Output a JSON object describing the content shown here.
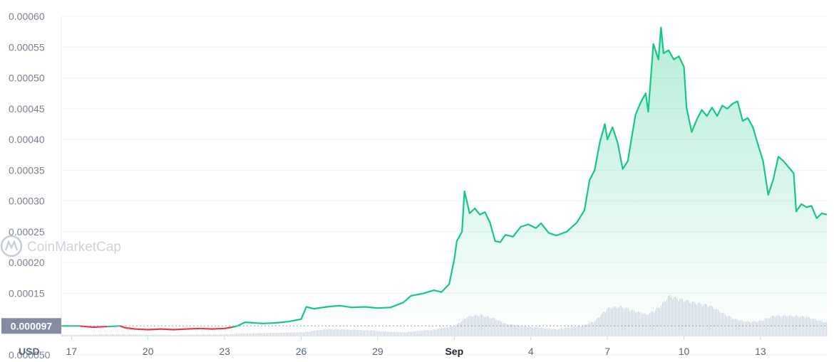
{
  "chart_data": {
    "type": "line",
    "currency_label": "USD",
    "watermark": "CoinMarketCap",
    "start_price_label": "0.000097",
    "start_price": 9.7e-05,
    "y_ticks": [
      "0.00060",
      "0.00055",
      "0.00050",
      "0.00045",
      "0.00040",
      "0.00035",
      "0.00030",
      "0.00025",
      "0.00020",
      "0.00015",
      "0.000050"
    ],
    "y_tick_values": [
      0.0006,
      0.00055,
      0.0005,
      0.00045,
      0.0004,
      0.00035,
      0.0003,
      0.00025,
      0.0002,
      0.00015,
      5e-05
    ],
    "ylim": [
      8e-05,
      0.0006
    ],
    "x_ticks": [
      {
        "label": "17",
        "day": 0
      },
      {
        "label": "20",
        "day": 3
      },
      {
        "label": "23",
        "day": 6
      },
      {
        "label": "26",
        "day": 9
      },
      {
        "label": "29",
        "day": 12
      },
      {
        "label": "Sep",
        "day": 15,
        "bold": true
      },
      {
        "label": "4",
        "day": 18
      },
      {
        "label": "7",
        "day": 21
      },
      {
        "label": "10",
        "day": 24
      },
      {
        "label": "13",
        "day": 27
      }
    ],
    "xlim": [
      -0.4,
      29.6
    ],
    "grid": true,
    "series": [
      {
        "values": [
          [
            -0.4,
            9.7e-05
          ],
          [
            0.3,
            9.7e-05
          ],
          [
            0.8,
            9.5e-05
          ],
          [
            1.4,
            9.6e-05
          ],
          [
            1.9,
            9.7e-05
          ],
          [
            2.1,
            9.4e-05
          ],
          [
            2.5,
            9.2e-05
          ],
          [
            3.0,
            9.1e-05
          ],
          [
            3.5,
            9.2e-05
          ],
          [
            4.0,
            9.1e-05
          ],
          [
            4.5,
            9.2e-05
          ],
          [
            5.0,
            9.3e-05
          ],
          [
            5.5,
            9.2e-05
          ],
          [
            6.0,
            9.3e-05
          ],
          [
            6.3,
            9.5e-05
          ],
          [
            6.5,
            9.7e-05
          ],
          [
            6.8,
            0.000103
          ],
          [
            7.5,
            0.000101
          ],
          [
            8.0,
            0.000102
          ],
          [
            8.5,
            0.000104
          ],
          [
            9.0,
            0.000108
          ],
          [
            9.2,
            0.000128
          ],
          [
            9.5,
            0.000125
          ],
          [
            10.0,
            0.000128
          ],
          [
            10.5,
            0.00013
          ],
          [
            11.0,
            0.000127
          ],
          [
            11.5,
            0.000128
          ],
          [
            12.0,
            0.000126
          ],
          [
            12.5,
            0.000127
          ],
          [
            13.0,
            0.000135
          ],
          [
            13.3,
            0.000146
          ],
          [
            13.8,
            0.00015
          ],
          [
            14.2,
            0.000155
          ],
          [
            14.5,
            0.000152
          ],
          [
            14.8,
            0.000165
          ],
          [
            14.9,
            0.000185
          ],
          [
            15.0,
            0.000205
          ],
          [
            15.1,
            0.000235
          ],
          [
            15.3,
            0.00025
          ],
          [
            15.4,
            0.000316
          ],
          [
            15.6,
            0.00028
          ],
          [
            15.8,
            0.000288
          ],
          [
            16.0,
            0.000278
          ],
          [
            16.2,
            0.000282
          ],
          [
            16.4,
            0.000265
          ],
          [
            16.6,
            0.000235
          ],
          [
            16.8,
            0.000233
          ],
          [
            17.0,
            0.000245
          ],
          [
            17.3,
            0.000242
          ],
          [
            17.6,
            0.000258
          ],
          [
            17.9,
            0.000262
          ],
          [
            18.2,
            0.000256
          ],
          [
            18.4,
            0.000264
          ],
          [
            18.7,
            0.000248
          ],
          [
            19.0,
            0.000244
          ],
          [
            19.4,
            0.00025
          ],
          [
            19.8,
            0.000265
          ],
          [
            20.1,
            0.000285
          ],
          [
            20.3,
            0.000334
          ],
          [
            20.5,
            0.00035
          ],
          [
            20.7,
            0.000395
          ],
          [
            20.9,
            0.000425
          ],
          [
            21.0,
            0.0004
          ],
          [
            21.2,
            0.00042
          ],
          [
            21.4,
            0.000395
          ],
          [
            21.6,
            0.000352
          ],
          [
            21.8,
            0.000365
          ],
          [
            21.9,
            0.00039
          ],
          [
            22.1,
            0.00044
          ],
          [
            22.3,
            0.00046
          ],
          [
            22.5,
            0.000475
          ],
          [
            22.6,
            0.000445
          ],
          [
            22.8,
            0.000555
          ],
          [
            23.0,
            0.00053
          ],
          [
            23.1,
            0.000582
          ],
          [
            23.2,
            0.00054
          ],
          [
            23.4,
            0.000545
          ],
          [
            23.6,
            0.00053
          ],
          [
            23.8,
            0.000535
          ],
          [
            24.0,
            0.000518
          ],
          [
            24.1,
            0.000452
          ],
          [
            24.3,
            0.000412
          ],
          [
            24.5,
            0.000432
          ],
          [
            24.7,
            0.000448
          ],
          [
            24.9,
            0.000438
          ],
          [
            25.1,
            0.000452
          ],
          [
            25.3,
            0.000438
          ],
          [
            25.5,
            0.000455
          ],
          [
            25.7,
            0.00045
          ],
          [
            25.9,
            0.000458
          ],
          [
            26.1,
            0.000462
          ],
          [
            26.3,
            0.00043
          ],
          [
            26.5,
            0.000435
          ],
          [
            26.7,
            0.00042
          ],
          [
            26.9,
            0.000392
          ],
          [
            27.1,
            0.000365
          ],
          [
            27.3,
            0.00031
          ],
          [
            27.5,
            0.000335
          ],
          [
            27.7,
            0.000372
          ],
          [
            27.9,
            0.000365
          ],
          [
            28.1,
            0.000355
          ],
          [
            28.3,
            0.000345
          ],
          [
            28.4,
            0.000283
          ],
          [
            28.6,
            0.000295
          ],
          [
            28.8,
            0.00029
          ],
          [
            29.0,
            0.000292
          ],
          [
            29.2,
            0.000272
          ],
          [
            29.4,
            0.00028
          ],
          [
            29.6,
            0.000278
          ]
        ]
      }
    ],
    "volume": [
      [
        -0.4,
        0.03
      ],
      [
        2,
        0.04
      ],
      [
        4,
        0.03
      ],
      [
        6,
        0.04
      ],
      [
        7,
        0.06
      ],
      [
        8,
        0.07
      ],
      [
        9,
        0.08
      ],
      [
        9.5,
        0.11
      ],
      [
        10,
        0.14
      ],
      [
        11,
        0.13
      ],
      [
        12,
        0.1
      ],
      [
        13,
        0.08
      ],
      [
        14,
        0.12
      ],
      [
        15,
        0.2
      ],
      [
        15.5,
        0.38
      ],
      [
        16,
        0.42
      ],
      [
        16.6,
        0.34
      ],
      [
        17,
        0.24
      ],
      [
        18,
        0.18
      ],
      [
        19,
        0.14
      ],
      [
        20,
        0.2
      ],
      [
        20.5,
        0.3
      ],
      [
        21,
        0.55
      ],
      [
        21.5,
        0.58
      ],
      [
        22,
        0.5
      ],
      [
        22.5,
        0.42
      ],
      [
        23,
        0.55
      ],
      [
        23.4,
        0.78
      ],
      [
        24,
        0.7
      ],
      [
        24.5,
        0.64
      ],
      [
        25,
        0.6
      ],
      [
        25.6,
        0.42
      ],
      [
        26,
        0.33
      ],
      [
        26.5,
        0.28
      ],
      [
        27,
        0.3
      ],
      [
        27.5,
        0.4
      ],
      [
        28.2,
        0.4
      ],
      [
        28.8,
        0.38
      ],
      [
        29.6,
        0.26
      ]
    ],
    "colors": {
      "up": "#16c784",
      "down": "#ea3943",
      "volume": "#cfd6e4",
      "grid": "#eff2f5",
      "start_label_bg": "#858ca2",
      "baseline": "#9aa1ad"
    }
  }
}
